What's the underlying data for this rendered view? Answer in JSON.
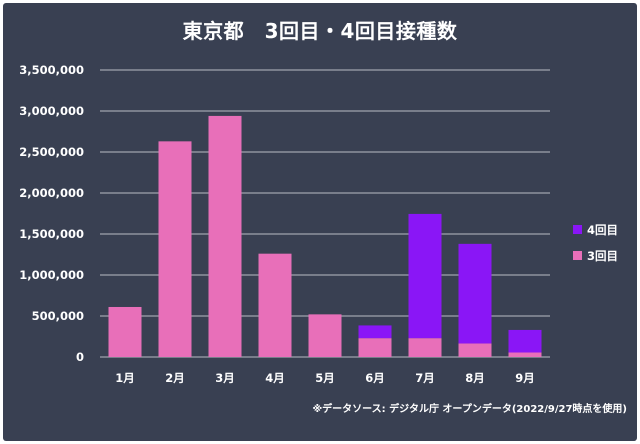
{
  "chart_data": {
    "type": "bar",
    "stacked": true,
    "title": "東京都　3回目・4回目接種数",
    "categories": [
      "1月",
      "2月",
      "3月",
      "4月",
      "5月",
      "6月",
      "7月",
      "8月",
      "9月"
    ],
    "series": [
      {
        "name": "3回目",
        "color": "#e86fb9",
        "values": [
          610000,
          2630000,
          2940000,
          1260000,
          520000,
          230000,
          230000,
          165000,
          55000
        ]
      },
      {
        "name": "4回目",
        "color": "#8a16f6",
        "values": [
          0,
          0,
          0,
          0,
          0,
          155000,
          1515000,
          1215000,
          275000
        ]
      }
    ],
    "ylim": [
      0,
      3500000
    ],
    "yticks": [
      0,
      500000,
      1000000,
      1500000,
      2000000,
      2500000,
      3000000,
      3500000
    ],
    "ytick_labels": [
      "0",
      "500,000",
      "1,000,000",
      "1,500,000",
      "2,000,000",
      "2,500,000",
      "3,000,000",
      "3,500,000"
    ],
    "grid": true,
    "legend_position": "right",
    "legend_order": [
      "4回目",
      "3回目"
    ],
    "source_note": "※データソース: デジタル庁 オープンデータ(2022/9/27時点を使用)"
  },
  "colors": {
    "background": "#394052",
    "gridline": "#b9bcc4",
    "text": "#ffffff"
  }
}
